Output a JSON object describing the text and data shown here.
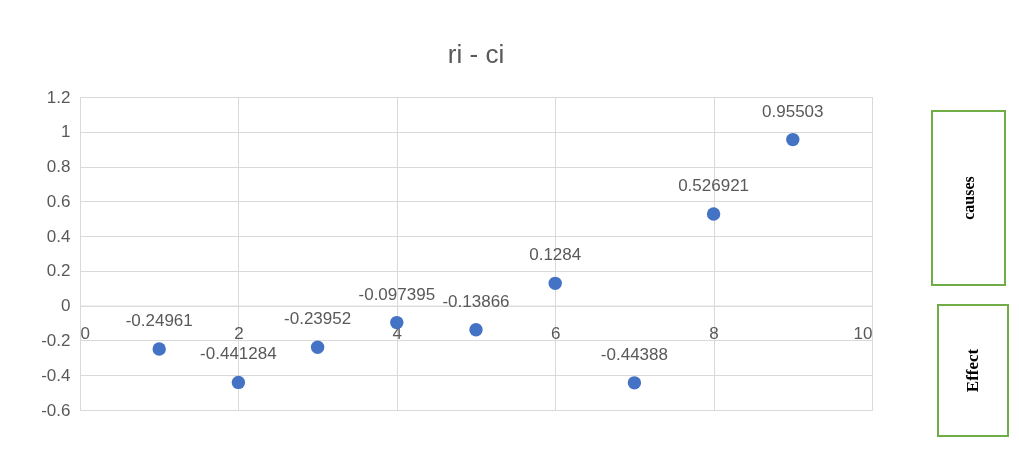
{
  "chart_data": {
    "type": "scatter",
    "title": "ri - ci",
    "x": [
      1,
      2,
      3,
      4,
      5,
      6,
      7,
      8,
      9
    ],
    "series": [
      {
        "color": "#4472c4",
        "values": [
          -0.24961,
          -0.441284,
          -0.23952,
          -0.097395,
          -0.13866,
          0.1284,
          -0.44388,
          0.526921,
          0.95503
        ]
      }
    ],
    "xlim": [
      0,
      10
    ],
    "xticks": [
      0,
      2,
      4,
      6,
      8,
      10
    ],
    "ylim": [
      -0.6,
      1.2
    ],
    "yticks": [
      -0.6,
      -0.4,
      -0.2,
      0,
      0.2,
      0.4,
      0.6,
      0.8,
      1,
      1.2
    ],
    "grid": true,
    "data_labels": true,
    "marker": "circle",
    "annotations": [
      "causes",
      "Effect"
    ]
  }
}
